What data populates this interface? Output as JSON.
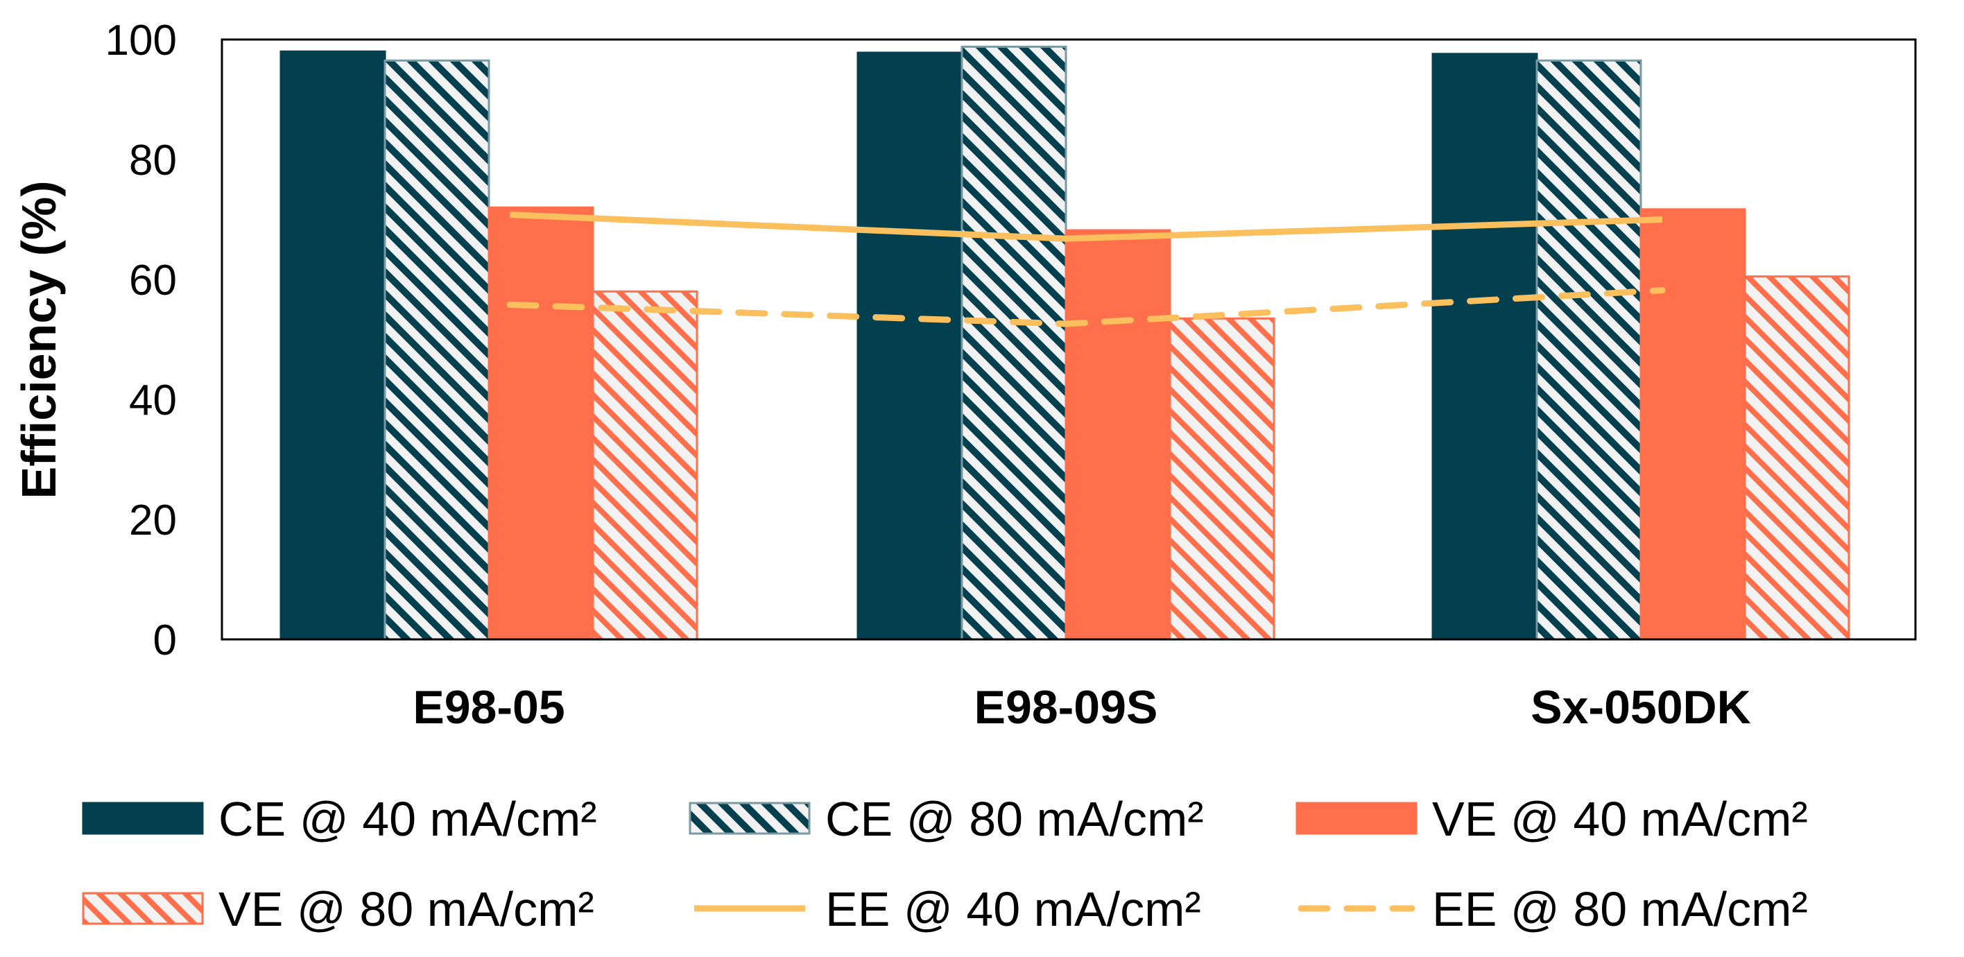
{
  "chart_data": {
    "type": "bar",
    "title": "",
    "xlabel": "",
    "ylabel": "Efficiency (%)",
    "ylim": [
      0,
      100
    ],
    "yticks": [
      "0",
      "20",
      "40",
      "60",
      "80",
      "100"
    ],
    "categories": [
      "E98-05",
      "E98-09S",
      "Sx-050DK"
    ],
    "series": [
      {
        "name": "CE @ 40 mA/cm²",
        "kind": "bar",
        "style": "solid",
        "color": "#02404F",
        "values": [
          98.0,
          97.8,
          97.6
        ]
      },
      {
        "name": "CE @ 80 mA/cm²",
        "kind": "bar",
        "style": "hatch",
        "color": "#02404F",
        "values": [
          96.5,
          98.8,
          96.5
        ]
      },
      {
        "name": "VE @ 40 mA/cm²",
        "kind": "bar",
        "style": "solid",
        "color": "#FF6F4B",
        "values": [
          72.0,
          68.2,
          71.7
        ]
      },
      {
        "name": "VE @ 80 mA/cm²",
        "kind": "bar",
        "style": "hatch",
        "color": "#FF6F4B",
        "values": [
          58.0,
          53.5,
          60.5
        ]
      },
      {
        "name": "EE @ 40 mA/cm²",
        "kind": "line",
        "style": "solid",
        "color": "#FBBF5E",
        "values": [
          70.8,
          66.8,
          70.0
        ]
      },
      {
        "name": "EE @ 80 mA/cm²",
        "kind": "line",
        "style": "dashed",
        "color": "#FBBF5E",
        "values": [
          55.8,
          52.6,
          58.2
        ]
      }
    ],
    "legend_position": "bottom"
  }
}
